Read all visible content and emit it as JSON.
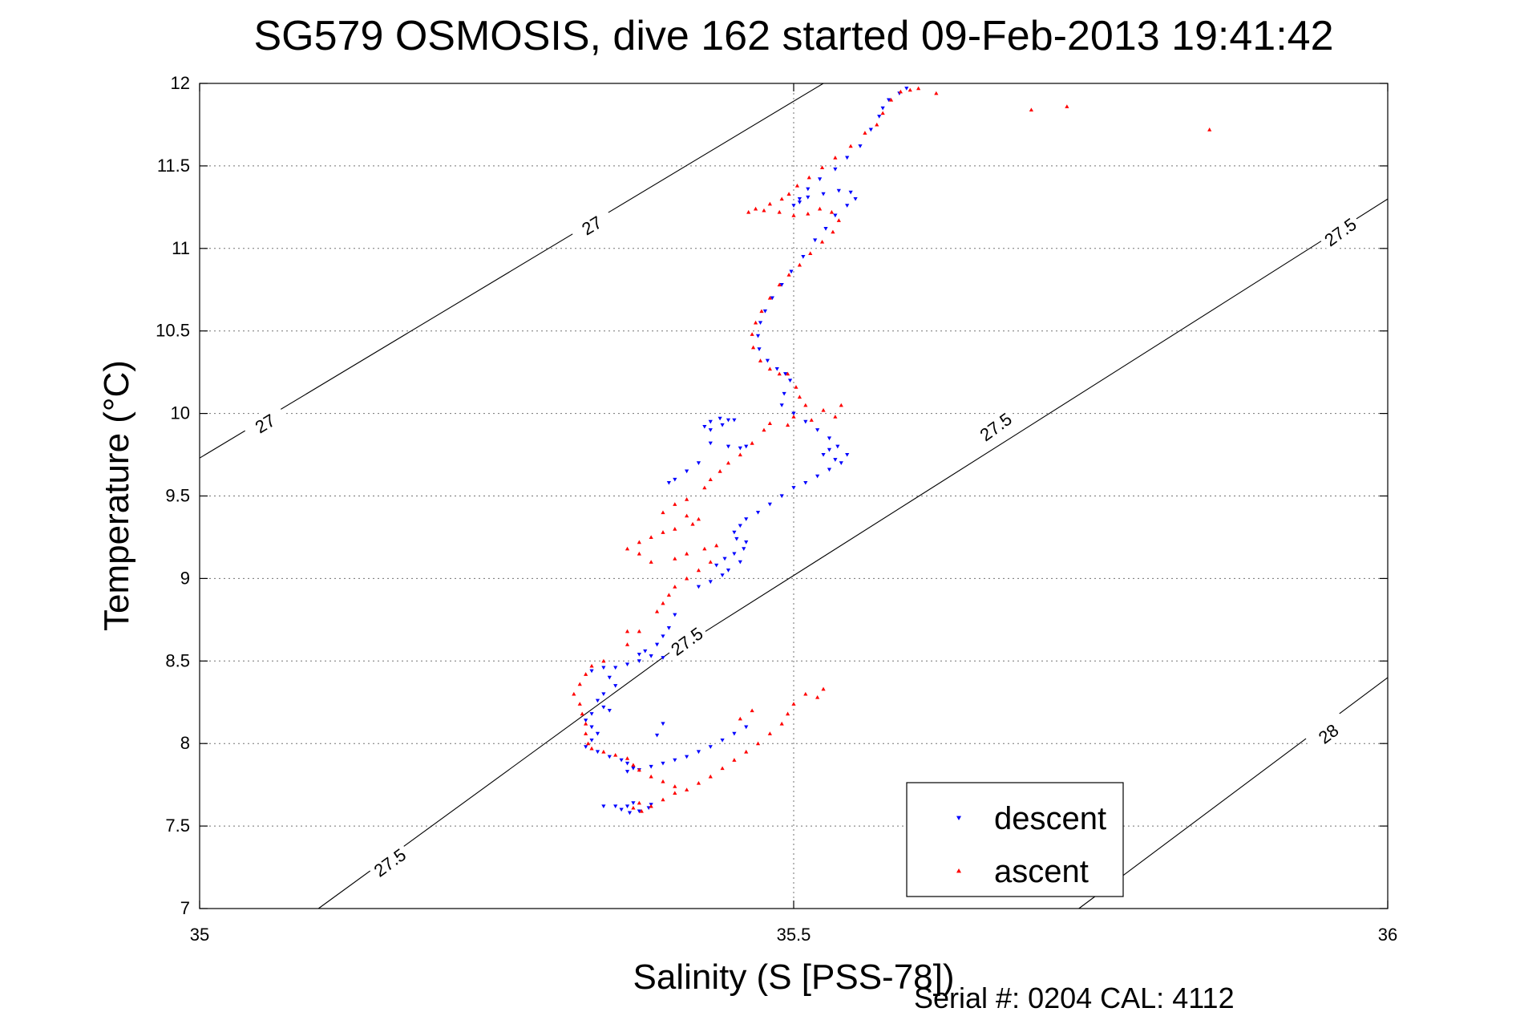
{
  "chart_data": {
    "type": "scatter",
    "title": "SG579 OSMOSIS, dive 162 started 09-Feb-2013 19:41:42",
    "xlabel": "Salinity (S [PSS-78])",
    "ylabel": "Temperature (°C)",
    "footer": "Serial #: 0204  CAL: 4112",
    "xlim": [
      35,
      36
    ],
    "ylim": [
      7,
      12
    ],
    "x_ticks": [
      "35",
      "35.5",
      "36"
    ],
    "x_tick_values": [
      35,
      35.5,
      36
    ],
    "y_ticks": [
      "7",
      "7.5",
      "8",
      "8.5",
      "9",
      "9.5",
      "10",
      "10.5",
      "11",
      "11.5",
      "12"
    ],
    "y_tick_values": [
      7,
      7.5,
      8,
      8.5,
      9,
      9.5,
      10,
      10.5,
      11,
      11.5,
      12
    ],
    "grid": true,
    "legend_position": "bottom-right",
    "series": [
      {
        "name": "descent",
        "color": "#0000ff",
        "marker": "triangle-down",
        "points": [
          [
            35.595,
            11.97
          ],
          [
            35.589,
            11.94
          ],
          [
            35.58,
            11.9
          ],
          [
            35.575,
            11.85
          ],
          [
            35.572,
            11.8
          ],
          [
            35.565,
            11.72
          ],
          [
            35.556,
            11.62
          ],
          [
            35.545,
            11.55
          ],
          [
            35.535,
            11.48
          ],
          [
            35.522,
            11.42
          ],
          [
            35.512,
            11.36
          ],
          [
            35.505,
            11.3
          ],
          [
            35.5,
            11.26
          ],
          [
            35.505,
            11.28
          ],
          [
            35.512,
            11.31
          ],
          [
            35.525,
            11.33
          ],
          [
            35.538,
            11.35
          ],
          [
            35.548,
            11.34
          ],
          [
            35.552,
            11.3
          ],
          [
            35.545,
            11.26
          ],
          [
            35.535,
            11.2
          ],
          [
            35.527,
            11.12
          ],
          [
            35.518,
            11.05
          ],
          [
            35.508,
            10.95
          ],
          [
            35.498,
            10.86
          ],
          [
            35.49,
            10.78
          ],
          [
            35.482,
            10.7
          ],
          [
            35.476,
            10.62
          ],
          [
            35.472,
            10.55
          ],
          [
            35.47,
            10.47
          ],
          [
            35.471,
            10.39
          ],
          [
            35.478,
            10.32
          ],
          [
            35.486,
            10.27
          ],
          [
            35.493,
            10.24
          ],
          [
            35.497,
            10.2
          ],
          [
            35.492,
            10.12
          ],
          [
            35.49,
            10.05
          ],
          [
            35.5,
            10.0
          ],
          [
            35.51,
            9.95
          ],
          [
            35.52,
            9.9
          ],
          [
            35.53,
            9.85
          ],
          [
            35.537,
            9.8
          ],
          [
            35.53,
            9.78
          ],
          [
            35.525,
            9.75
          ],
          [
            35.535,
            9.72
          ],
          [
            35.545,
            9.75
          ],
          [
            35.54,
            9.7
          ],
          [
            35.53,
            9.66
          ],
          [
            35.52,
            9.62
          ],
          [
            35.51,
            9.58
          ],
          [
            35.5,
            9.55
          ],
          [
            35.49,
            9.5
          ],
          [
            35.48,
            9.45
          ],
          [
            35.47,
            9.4
          ],
          [
            35.46,
            9.36
          ],
          [
            35.455,
            9.32
          ],
          [
            35.45,
            9.28
          ],
          [
            35.452,
            9.24
          ],
          [
            35.46,
            9.22
          ],
          [
            35.458,
            9.18
          ],
          [
            35.45,
            9.15
          ],
          [
            35.442,
            9.12
          ],
          [
            35.435,
            9.08
          ],
          [
            35.445,
            9.05
          ],
          [
            35.455,
            9.1
          ],
          [
            35.44,
            9.02
          ],
          [
            35.43,
            8.98
          ],
          [
            35.42,
            8.95
          ],
          [
            35.445,
            9.96
          ],
          [
            35.438,
            9.97
          ],
          [
            35.43,
            9.95
          ],
          [
            35.425,
            9.92
          ],
          [
            35.43,
            9.9
          ],
          [
            35.44,
            9.93
          ],
          [
            35.45,
            9.96
          ],
          [
            35.43,
            9.82
          ],
          [
            35.445,
            9.8
          ],
          [
            35.455,
            9.79
          ],
          [
            35.46,
            9.8
          ],
          [
            35.4,
            9.6
          ],
          [
            35.395,
            9.58
          ],
          [
            35.41,
            9.65
          ],
          [
            35.42,
            9.7
          ],
          [
            35.4,
            8.78
          ],
          [
            35.395,
            8.7
          ],
          [
            35.39,
            8.65
          ],
          [
            35.385,
            8.6
          ],
          [
            35.375,
            8.56
          ],
          [
            35.37,
            8.54
          ],
          [
            35.38,
            8.53
          ],
          [
            35.39,
            8.52
          ],
          [
            35.37,
            8.5
          ],
          [
            35.36,
            8.48
          ],
          [
            35.35,
            8.46
          ],
          [
            35.34,
            8.46
          ],
          [
            35.33,
            8.44
          ],
          [
            35.345,
            8.4
          ],
          [
            35.35,
            8.35
          ],
          [
            35.34,
            8.3
          ],
          [
            35.335,
            8.26
          ],
          [
            35.34,
            8.22
          ],
          [
            35.345,
            8.2
          ],
          [
            35.33,
            8.18
          ],
          [
            35.325,
            8.14
          ],
          [
            35.33,
            8.1
          ],
          [
            35.335,
            8.06
          ],
          [
            35.33,
            8.02
          ],
          [
            35.325,
            7.98
          ],
          [
            35.335,
            7.95
          ],
          [
            35.345,
            7.92
          ],
          [
            35.355,
            7.9
          ],
          [
            35.36,
            7.88
          ],
          [
            35.365,
            7.85
          ],
          [
            35.36,
            7.83
          ],
          [
            35.37,
            7.84
          ],
          [
            35.38,
            7.86
          ],
          [
            35.39,
            7.88
          ],
          [
            35.4,
            7.9
          ],
          [
            35.41,
            7.92
          ],
          [
            35.42,
            7.95
          ],
          [
            35.43,
            7.98
          ],
          [
            35.44,
            8.02
          ],
          [
            35.45,
            8.06
          ],
          [
            35.46,
            8.1
          ],
          [
            35.385,
            8.05
          ],
          [
            35.39,
            8.12
          ],
          [
            35.365,
            7.64
          ],
          [
            35.36,
            7.62
          ],
          [
            35.355,
            7.6
          ],
          [
            35.362,
            7.58
          ],
          [
            35.37,
            7.59
          ],
          [
            35.378,
            7.61
          ],
          [
            35.38,
            7.63
          ],
          [
            35.35,
            7.62
          ],
          [
            35.34,
            7.62
          ]
        ]
      },
      {
        "name": "ascent",
        "color": "#ff0000",
        "marker": "triangle-up",
        "points": [
          [
            35.605,
            11.97
          ],
          [
            35.598,
            11.96
          ],
          [
            35.59,
            11.95
          ],
          [
            35.582,
            11.9
          ],
          [
            35.575,
            11.82
          ],
          [
            35.57,
            11.75
          ],
          [
            35.56,
            11.7
          ],
          [
            35.548,
            11.62
          ],
          [
            35.535,
            11.55
          ],
          [
            35.524,
            11.49
          ],
          [
            35.513,
            11.43
          ],
          [
            35.503,
            11.38
          ],
          [
            35.496,
            11.33
          ],
          [
            35.49,
            11.3
          ],
          [
            35.48,
            11.27
          ],
          [
            35.468,
            11.24
          ],
          [
            35.462,
            11.22
          ],
          [
            35.475,
            11.23
          ],
          [
            35.488,
            11.22
          ],
          [
            35.5,
            11.2
          ],
          [
            35.512,
            11.21
          ],
          [
            35.522,
            11.24
          ],
          [
            35.532,
            11.22
          ],
          [
            35.538,
            11.17
          ],
          [
            35.533,
            11.1
          ],
          [
            35.524,
            11.04
          ],
          [
            35.514,
            10.97
          ],
          [
            35.505,
            10.9
          ],
          [
            35.496,
            10.84
          ],
          [
            35.488,
            10.78
          ],
          [
            35.48,
            10.7
          ],
          [
            35.473,
            10.62
          ],
          [
            35.468,
            10.55
          ],
          [
            35.465,
            10.48
          ],
          [
            35.466,
            10.4
          ],
          [
            35.472,
            10.32
          ],
          [
            35.48,
            10.27
          ],
          [
            35.488,
            10.24
          ],
          [
            35.495,
            10.24
          ],
          [
            35.502,
            10.16
          ],
          [
            35.505,
            10.1
          ],
          [
            35.51,
            10.05
          ],
          [
            35.5,
            9.98
          ],
          [
            35.495,
            9.93
          ],
          [
            35.515,
            9.96
          ],
          [
            35.525,
            10.02
          ],
          [
            35.54,
            10.05
          ],
          [
            35.535,
            9.98
          ],
          [
            35.48,
            9.94
          ],
          [
            35.475,
            9.9
          ],
          [
            35.465,
            9.82
          ],
          [
            35.455,
            9.75
          ],
          [
            35.445,
            9.7
          ],
          [
            35.438,
            9.65
          ],
          [
            35.43,
            9.6
          ],
          [
            35.425,
            9.55
          ],
          [
            35.41,
            9.48
          ],
          [
            35.4,
            9.45
          ],
          [
            35.39,
            9.4
          ],
          [
            35.41,
            9.38
          ],
          [
            35.42,
            9.36
          ],
          [
            35.415,
            9.33
          ],
          [
            35.4,
            9.3
          ],
          [
            35.39,
            9.28
          ],
          [
            35.38,
            9.25
          ],
          [
            35.37,
            9.22
          ],
          [
            35.36,
            9.18
          ],
          [
            35.37,
            9.15
          ],
          [
            35.38,
            9.1
          ],
          [
            35.4,
            9.12
          ],
          [
            35.41,
            9.15
          ],
          [
            35.425,
            9.18
          ],
          [
            35.435,
            9.2
          ],
          [
            35.43,
            9.1
          ],
          [
            35.42,
            9.05
          ],
          [
            35.41,
            9.0
          ],
          [
            35.4,
            8.95
          ],
          [
            35.395,
            8.9
          ],
          [
            35.39,
            8.85
          ],
          [
            35.385,
            8.8
          ],
          [
            35.37,
            8.68
          ],
          [
            35.36,
            8.6
          ],
          [
            35.34,
            8.5
          ],
          [
            35.33,
            8.47
          ],
          [
            35.325,
            8.42
          ],
          [
            35.32,
            8.36
          ],
          [
            35.315,
            8.3
          ],
          [
            35.32,
            8.24
          ],
          [
            35.322,
            8.18
          ],
          [
            35.325,
            8.12
          ],
          [
            35.325,
            8.06
          ],
          [
            35.327,
            8.0
          ],
          [
            35.33,
            7.97
          ],
          [
            35.34,
            7.95
          ],
          [
            35.35,
            7.93
          ],
          [
            35.36,
            7.91
          ],
          [
            35.365,
            7.87
          ],
          [
            35.37,
            7.84
          ],
          [
            35.38,
            7.8
          ],
          [
            35.39,
            7.77
          ],
          [
            35.4,
            7.74
          ],
          [
            35.41,
            7.72
          ],
          [
            35.42,
            7.76
          ],
          [
            35.43,
            7.8
          ],
          [
            35.44,
            7.85
          ],
          [
            35.45,
            7.9
          ],
          [
            35.46,
            7.95
          ],
          [
            35.47,
            8.0
          ],
          [
            35.48,
            8.06
          ],
          [
            35.49,
            8.12
          ],
          [
            35.495,
            8.18
          ],
          [
            35.5,
            8.24
          ],
          [
            35.51,
            8.3
          ],
          [
            35.52,
            8.28
          ],
          [
            35.525,
            8.33
          ],
          [
            35.465,
            8.2
          ],
          [
            35.455,
            8.15
          ],
          [
            35.37,
            7.64
          ],
          [
            35.365,
            7.61
          ],
          [
            35.372,
            7.59
          ],
          [
            35.38,
            7.62
          ],
          [
            35.39,
            7.66
          ],
          [
            35.4,
            7.7
          ],
          [
            35.36,
            8.68
          ],
          [
            35.73,
            11.86
          ],
          [
            35.7,
            11.84
          ],
          [
            35.85,
            11.72
          ],
          [
            35.62,
            11.94
          ]
        ]
      }
    ],
    "contours": [
      {
        "label": "27",
        "lines": [
          [
            [
              35.0,
              9.73
            ],
            [
              35.525,
              12.0
            ]
          ]
        ],
        "labels_at": [
          [
            35.055,
            9.94
          ],
          [
            35.33,
            11.14
          ]
        ]
      },
      {
        "label": "27.5",
        "lines": [
          [
            [
              35.1,
              7.0
            ],
            [
              35.405,
              8.6
            ]
          ],
          [
            [
              35.415,
              8.63
            ],
            [
              36.0,
              11.3
            ]
          ]
        ],
        "labels_at": [
          [
            35.16,
            7.28
          ],
          [
            35.41,
            8.62
          ],
          [
            35.67,
            9.92
          ],
          [
            35.96,
            11.1
          ]
        ]
      },
      {
        "label": "28",
        "lines": [
          [
            [
              35.74,
              7.0
            ],
            [
              36.0,
              8.4
            ]
          ]
        ],
        "labels_at": [
          [
            35.95,
            8.06
          ]
        ]
      }
    ]
  }
}
